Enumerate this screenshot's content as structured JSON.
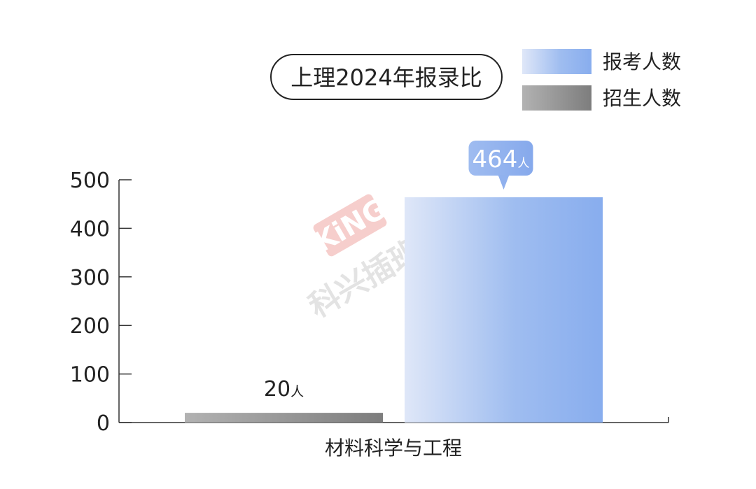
{
  "chart_data": {
    "type": "bar",
    "title": "上理2024年报录比",
    "categories": [
      "材料科学与工程"
    ],
    "series": [
      {
        "name": "招生人数",
        "values": [
          20
        ],
        "label_unit": "人",
        "color": "#8f8f8f"
      },
      {
        "name": "报考人数",
        "values": [
          464
        ],
        "label_unit": "人",
        "color": "#8aaef0"
      }
    ],
    "xlabel": "",
    "ylabel": "",
    "ylim": [
      0,
      500
    ],
    "yticks": [
      0,
      100,
      200,
      300,
      400,
      500
    ],
    "legend": "top-right",
    "grid": false
  },
  "legend": [
    {
      "name": "报考人数",
      "color_from": "#dde6f7",
      "color_to": "#8aaef0"
    },
    {
      "name": "招生人数",
      "color_from": "#b4b4b4",
      "color_to": "#7c7c7c"
    }
  ],
  "watermark": {
    "logo_text": "KiNG",
    "text": "科兴插班生",
    "color": "#e8766f"
  }
}
